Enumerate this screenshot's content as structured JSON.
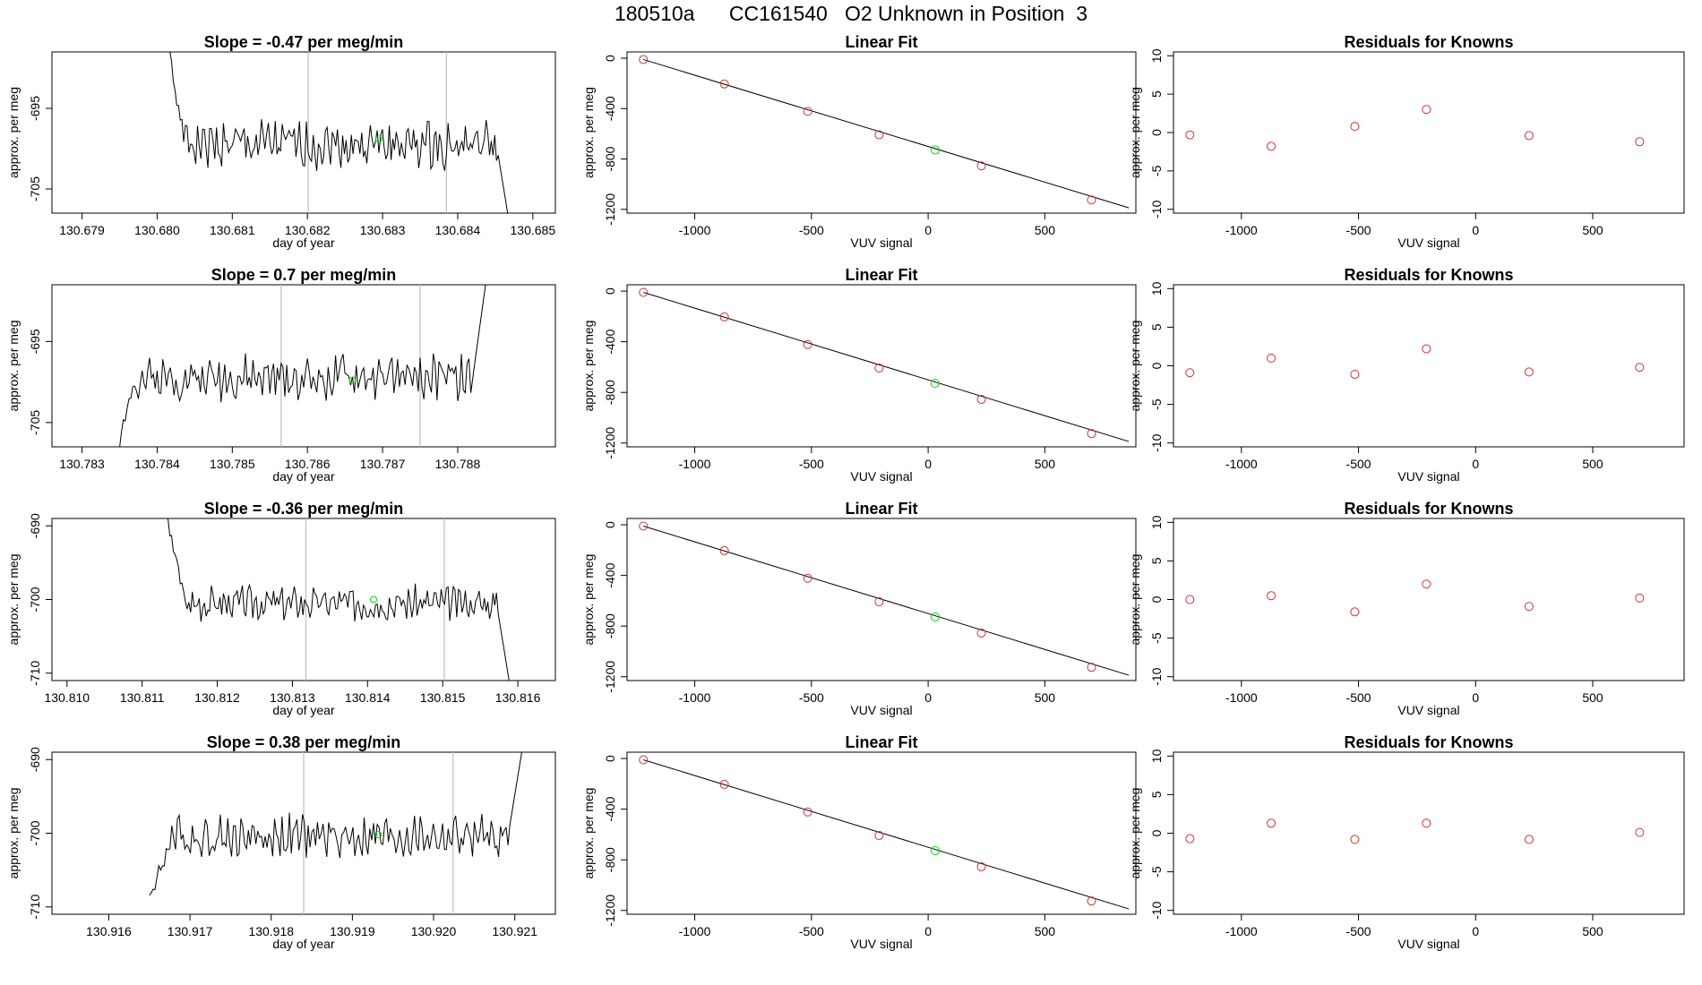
{
  "main_title": "180510a      CC161540   O2 Unknown in Position  3",
  "colors": {
    "line": "#000000",
    "known": "#cd3333",
    "unknown": "#00dd00",
    "vline": "#bebebe",
    "box": "#000000"
  },
  "chart_data": [
    {
      "type": "line",
      "panel": "drift",
      "title": "Slope =  -0.47  per meg/min",
      "xlabel": "day of year",
      "ylabel": "approx. per meg",
      "xlim": [
        130.6786,
        130.6853
      ],
      "ylim": [
        -708,
        -688
      ],
      "xticks": [
        "130.679",
        "130.680",
        "130.681",
        "130.682",
        "130.683",
        "130.684",
        "130.685"
      ],
      "xtick_values": [
        130.679,
        130.68,
        130.681,
        130.682,
        130.683,
        130.684,
        130.685
      ],
      "yticks": [
        "-695",
        "-705"
      ],
      "ytick_values": [
        -695,
        -705
      ],
      "x_start": 130.6801,
      "x_end": 130.6847,
      "start": -685,
      "base": -699.5,
      "end": -710,
      "amp": 2.4,
      "seed": 1,
      "vlines": [
        130.68201,
        130.68385
      ],
      "unknown_point": [
        130.68295,
        -698.8
      ]
    },
    {
      "type": "scatter",
      "panel": "fit",
      "title": "Linear Fit",
      "xlabel": "VUV signal",
      "ylabel": "approx. per meg",
      "xlim": [
        -1290,
        890
      ],
      "ylim": [
        -1230,
        50
      ],
      "xticks": [
        "-1000",
        "-500",
        "0",
        "500"
      ],
      "xtick_values": [
        -1000,
        -500,
        0,
        500
      ],
      "yticks": [
        "0",
        "-400",
        "-800",
        "-1200"
      ],
      "ytick_values": [
        0,
        -400,
        -800,
        -1200
      ],
      "x": [
        -1220,
        -873,
        -516,
        -210,
        228,
        700
      ],
      "y": [
        -10,
        -204,
        -422,
        -608,
        -855,
        -1125
      ],
      "unknown_point": [
        30,
        -728
      ],
      "fit_line": [
        [
          -1220,
          -10
        ],
        [
          860,
          -1188
        ]
      ]
    },
    {
      "type": "scatter",
      "panel": "residuals",
      "title": "Residuals for Knowns",
      "xlabel": "VUV signal",
      "ylabel": "approx. per meg",
      "xlim": [
        -1290,
        890
      ],
      "ylim": [
        -10.5,
        10.5
      ],
      "xticks": [
        "-1000",
        "-500",
        "0",
        "500"
      ],
      "xtick_values": [
        -1000,
        -500,
        0,
        500
      ],
      "yticks": [
        "10",
        "5",
        "0",
        "-5",
        "-10"
      ],
      "ytick_values": [
        10,
        5,
        0,
        -5,
        -10
      ],
      "x": [
        -1220,
        -873,
        -516,
        -210,
        228,
        700
      ],
      "y": [
        -0.3,
        -1.8,
        0.8,
        3.0,
        -0.4,
        -1.2
      ]
    },
    {
      "type": "line",
      "panel": "drift",
      "title": "Slope =  0.7  per meg/min",
      "xlabel": "day of year",
      "ylabel": "approx. per meg",
      "xlim": [
        130.7826,
        130.7893
      ],
      "ylim": [
        -708,
        -688
      ],
      "xticks": [
        "130.783",
        "130.784",
        "130.785",
        "130.786",
        "130.787",
        "130.788"
      ],
      "xtick_values": [
        130.783,
        130.784,
        130.785,
        130.786,
        130.787,
        130.788
      ],
      "yticks": [
        "-695",
        "-705"
      ],
      "ytick_values": [
        -695,
        -705
      ],
      "x_start": 130.7834,
      "x_end": 130.7884,
      "start": -712,
      "base": -699.5,
      "end": -686,
      "amp": 2.2,
      "seed": 2,
      "vlines": [
        130.78565,
        130.7875
      ],
      "unknown_point": [
        130.7866,
        -699.8
      ]
    },
    {
      "type": "scatter",
      "panel": "fit",
      "title": "Linear Fit",
      "xlabel": "VUV signal",
      "ylabel": "approx. per meg",
      "xlim": [
        -1290,
        890
      ],
      "ylim": [
        -1230,
        50
      ],
      "xticks": [
        "-1000",
        "-500",
        "0",
        "500"
      ],
      "xtick_values": [
        -1000,
        -500,
        0,
        500
      ],
      "yticks": [
        "0",
        "-400",
        "-800",
        "-1200"
      ],
      "ytick_values": [
        0,
        -400,
        -800,
        -1200
      ],
      "x": [
        -1220,
        -873,
        -516,
        -210,
        228,
        700
      ],
      "y": [
        -10,
        -204,
        -422,
        -608,
        -855,
        -1125
      ],
      "unknown_point": [
        30,
        -728
      ],
      "fit_line": [
        [
          -1220,
          -10
        ],
        [
          860,
          -1188
        ]
      ]
    },
    {
      "type": "scatter",
      "panel": "residuals",
      "title": "Residuals for Knowns",
      "xlabel": "VUV signal",
      "ylabel": "approx. per meg",
      "xlim": [
        -1290,
        890
      ],
      "ylim": [
        -10.5,
        10.5
      ],
      "xticks": [
        "-1000",
        "-500",
        "0",
        "500"
      ],
      "xtick_values": [
        -1000,
        -500,
        0,
        500
      ],
      "yticks": [
        "10",
        "5",
        "0",
        "-5",
        "-10"
      ],
      "ytick_values": [
        10,
        5,
        0,
        -5,
        -10
      ],
      "x": [
        -1220,
        -873,
        -516,
        -210,
        228,
        700
      ],
      "y": [
        -0.9,
        1.0,
        -1.1,
        2.2,
        -0.8,
        -0.2
      ]
    },
    {
      "type": "line",
      "panel": "drift",
      "title": "Slope =  -0.36  per meg/min",
      "xlabel": "day of year",
      "ylabel": "approx. per meg",
      "xlim": [
        130.8098,
        130.8165
      ],
      "ylim": [
        -711,
        -689
      ],
      "xticks": [
        "130.810",
        "130.811",
        "130.812",
        "130.813",
        "130.814",
        "130.815",
        "130.816"
      ],
      "xtick_values": [
        130.81,
        130.811,
        130.812,
        130.813,
        130.814,
        130.815,
        130.816
      ],
      "yticks": [
        "-690",
        "-700",
        "-710"
      ],
      "ytick_values": [
        -690,
        -700,
        -710
      ],
      "x_start": 130.8113,
      "x_end": 130.8159,
      "start": -688,
      "base": -700.5,
      "end": -712,
      "amp": 1.9,
      "seed": 3,
      "vlines": [
        130.81318,
        130.81502
      ],
      "unknown_point": [
        130.81408,
        -700.0
      ]
    },
    {
      "type": "scatter",
      "panel": "fit",
      "title": "Linear Fit",
      "xlabel": "VUV signal",
      "ylabel": "approx. per meg",
      "xlim": [
        -1290,
        890
      ],
      "ylim": [
        -1230,
        50
      ],
      "xticks": [
        "-1000",
        "-500",
        "0",
        "500"
      ],
      "xtick_values": [
        -1000,
        -500,
        0,
        500
      ],
      "yticks": [
        "0",
        "-400",
        "-800",
        "-1200"
      ],
      "ytick_values": [
        0,
        -400,
        -800,
        -1200
      ],
      "x": [
        -1220,
        -873,
        -516,
        -210,
        228,
        700
      ],
      "y": [
        -10,
        -204,
        -422,
        -608,
        -855,
        -1125
      ],
      "unknown_point": [
        30,
        -728
      ],
      "fit_line": [
        [
          -1220,
          -10
        ],
        [
          860,
          -1188
        ]
      ]
    },
    {
      "type": "scatter",
      "panel": "residuals",
      "title": "Residuals for Knowns",
      "xlabel": "VUV signal",
      "ylabel": "approx. per meg",
      "xlim": [
        -1290,
        890
      ],
      "ylim": [
        -10.5,
        10.5
      ],
      "xticks": [
        "-1000",
        "-500",
        "0",
        "500"
      ],
      "xtick_values": [
        -1000,
        -500,
        0,
        500
      ],
      "yticks": [
        "10",
        "5",
        "0",
        "-5",
        "-10"
      ],
      "ytick_values": [
        10,
        5,
        0,
        -5,
        -10
      ],
      "x": [
        -1220,
        -873,
        -516,
        -210,
        228,
        700
      ],
      "y": [
        0.0,
        0.5,
        -1.6,
        2.0,
        -0.9,
        0.2
      ]
    },
    {
      "type": "line",
      "panel": "drift",
      "title": "Slope =  0.38  per meg/min",
      "xlabel": "day of year",
      "ylabel": "approx. per meg",
      "xlim": [
        130.9153,
        130.9215
      ],
      "ylim": [
        -711,
        -689
      ],
      "xticks": [
        "130.916",
        "130.917",
        "130.918",
        "130.919",
        "130.920",
        "130.921"
      ],
      "xtick_values": [
        130.916,
        130.917,
        130.918,
        130.919,
        130.92,
        130.921
      ],
      "yticks": [
        "-690",
        "-700",
        "-710"
      ],
      "ytick_values": [
        -690,
        -700,
        -710
      ],
      "x_start": 130.9165,
      "x_end": 130.9211,
      "start": -709,
      "base": -700.5,
      "end": -688,
      "amp": 2.4,
      "seed": 4,
      "vlines": [
        130.9184,
        130.92024
      ],
      "unknown_point": [
        130.91932,
        -700.2
      ]
    },
    {
      "type": "scatter",
      "panel": "fit",
      "title": "Linear Fit",
      "xlabel": "VUV signal",
      "ylabel": "approx. per meg",
      "xlim": [
        -1290,
        890
      ],
      "ylim": [
        -1230,
        50
      ],
      "xticks": [
        "-1000",
        "-500",
        "0",
        "500"
      ],
      "xtick_values": [
        -1000,
        -500,
        0,
        500
      ],
      "yticks": [
        "0",
        "-400",
        "-800",
        "-1200"
      ],
      "ytick_values": [
        0,
        -400,
        -800,
        -1200
      ],
      "x": [
        -1220,
        -873,
        -516,
        -210,
        228,
        700
      ],
      "y": [
        -10,
        -204,
        -422,
        -608,
        -855,
        -1125
      ],
      "unknown_point": [
        30,
        -728
      ],
      "fit_line": [
        [
          -1220,
          -10
        ],
        [
          860,
          -1188
        ]
      ]
    },
    {
      "type": "scatter",
      "panel": "residuals",
      "title": "Residuals for Knowns",
      "xlabel": "VUV signal",
      "ylabel": "approx. per meg",
      "xlim": [
        -1290,
        890
      ],
      "ylim": [
        -10.5,
        10.5
      ],
      "xticks": [
        "-1000",
        "-500",
        "0",
        "500"
      ],
      "xtick_values": [
        -1000,
        -500,
        0,
        500
      ],
      "yticks": [
        "10",
        "5",
        "0",
        "-5",
        "-10"
      ],
      "ytick_values": [
        10,
        5,
        0,
        -5,
        -10
      ],
      "x": [
        -1220,
        -873,
        -516,
        -210,
        228,
        700
      ],
      "y": [
        -0.7,
        1.3,
        -0.8,
        1.3,
        -0.8,
        0.1
      ]
    }
  ]
}
